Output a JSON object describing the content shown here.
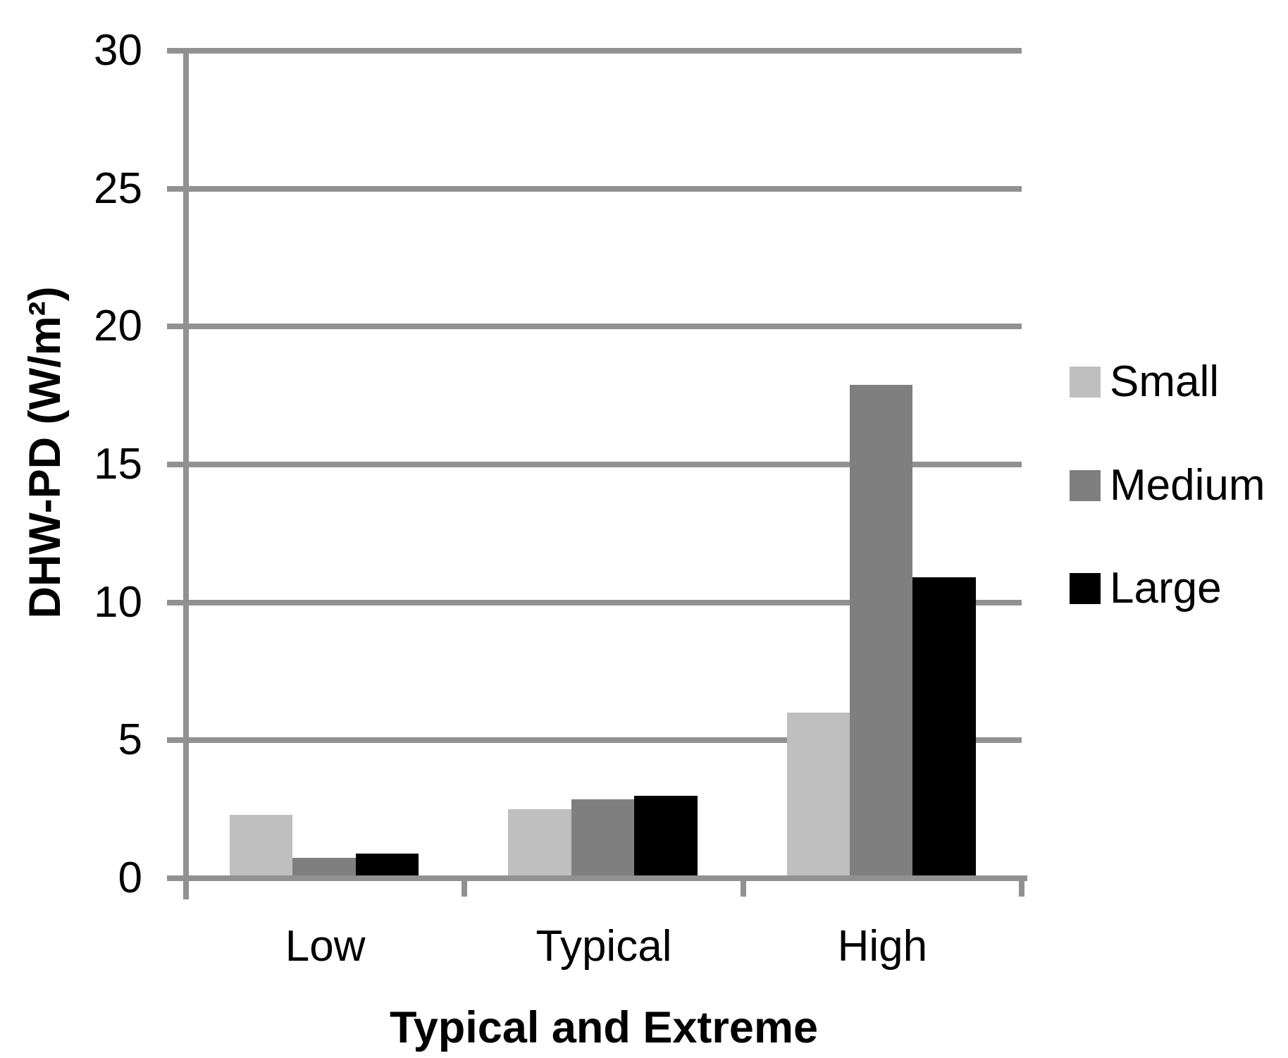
{
  "chart_data": {
    "type": "bar",
    "title": "",
    "categories": [
      "Low",
      "Typical",
      "High"
    ],
    "series": [
      {
        "name": "Small",
        "color": "#bfbfbf",
        "values": [
          2.3,
          2.5,
          6.0
        ]
      },
      {
        "name": "Medium",
        "color": "#7f7f7f",
        "values": [
          0.75,
          2.85,
          17.9
        ]
      },
      {
        "name": "Large",
        "color": "#000000",
        "values": [
          0.9,
          3.0,
          10.9
        ]
      }
    ],
    "xlabel": "Typical and Extreme",
    "ylabel": "DHW-PD (W/m²)",
    "ylim": [
      0,
      30
    ],
    "yticks": [
      0,
      5,
      10,
      15,
      20,
      25,
      30
    ],
    "grid": true,
    "legend_position": "right",
    "axis_color": "#919191",
    "text_color": "#000000",
    "background_color": "#ffffff"
  }
}
